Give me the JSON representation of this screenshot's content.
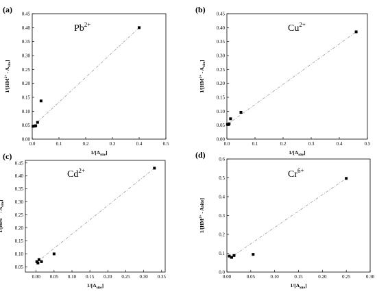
{
  "chart_data": [
    {
      "panel": "(a)",
      "ion": "Pb",
      "ion_charge": "2+",
      "type": "scatter",
      "xlabel": "1/[A",
      "xlabel_sub": "site",
      "xlabel_end": "]",
      "ylabel": "1/[HM",
      "ylabel_sup": "2+",
      "ylabel_mid": " - A",
      "ylabel_sub": "site",
      "ylabel_end": "]",
      "xlim": [
        0,
        0.5
      ],
      "ylim": [
        0,
        0.45
      ],
      "xticks": [
        "0.0",
        "0.1",
        "0.2",
        "0.3",
        "0.4",
        "0.5"
      ],
      "yticks": [
        "0.00",
        "0.05",
        "0.10",
        "0.15",
        "0.20",
        "0.25",
        "0.30",
        "0.35",
        "0.40",
        "0.45"
      ],
      "points": [
        [
          0.003,
          0.046
        ],
        [
          0.008,
          0.047
        ],
        [
          0.013,
          0.048
        ],
        [
          0.02,
          0.06
        ],
        [
          0.033,
          0.137
        ],
        [
          0.4,
          0.4
        ]
      ],
      "fit": [
        [
          0.003,
          0.046
        ],
        [
          0.4,
          0.4
        ]
      ]
    },
    {
      "panel": "(b)",
      "ion": "Cu",
      "ion_charge": "2+",
      "type": "scatter",
      "xlabel": "1/[A",
      "xlabel_sub": "site",
      "xlabel_end": "]",
      "ylabel": "1/[HM",
      "ylabel_sup": "2+",
      "ylabel_mid": " - A",
      "ylabel_sub": "site",
      "ylabel_end": "]",
      "xlim": [
        0,
        0.5
      ],
      "ylim": [
        0,
        0.45
      ],
      "xticks": [
        "0.0",
        "0.1",
        "0.2",
        "0.3",
        "0.4",
        "0.5"
      ],
      "yticks": [
        "0.00",
        "0.05",
        "0.10",
        "0.15",
        "0.20",
        "0.25",
        "0.30",
        "0.35",
        "0.40",
        "0.45"
      ],
      "points": [
        [
          0.002,
          0.053
        ],
        [
          0.005,
          0.052
        ],
        [
          0.008,
          0.055
        ],
        [
          0.013,
          0.073
        ],
        [
          0.05,
          0.096
        ],
        [
          0.46,
          0.385
        ]
      ],
      "fit": [
        [
          0.002,
          0.053
        ],
        [
          0.46,
          0.385
        ]
      ]
    },
    {
      "panel": "(c)",
      "ion": "Cd",
      "ion_charge": "2+",
      "type": "scatter",
      "xlabel": "1/[A",
      "xlabel_sub": "site",
      "xlabel_end": "]",
      "ylabel": "1/[HM",
      "ylabel_sup": "2+",
      "ylabel_mid": " - A",
      "ylabel_sub": "site",
      "ylabel_end": "]",
      "xlim": [
        -0.03,
        0.36
      ],
      "ylim": [
        0.03,
        0.46
      ],
      "xticks": [
        "0.00",
        "0.05",
        "0.10",
        "0.15",
        "0.20",
        "0.25",
        "0.30",
        "0.35"
      ],
      "yticks": [
        "0.05",
        "0.10",
        "0.15",
        "0.20",
        "0.25",
        "0.30",
        "0.35",
        "0.40",
        "0.45"
      ],
      "points": [
        [
          0.002,
          0.07
        ],
        [
          0.005,
          0.065
        ],
        [
          0.008,
          0.078
        ],
        [
          0.015,
          0.07
        ],
        [
          0.05,
          0.1
        ],
        [
          0.33,
          0.43
        ]
      ],
      "fit": [
        [
          0.002,
          0.068
        ],
        [
          0.33,
          0.43
        ]
      ]
    },
    {
      "panel": "(d)",
      "ion": "Cr",
      "ion_charge": "6+",
      "type": "scatter",
      "xlabel": "1/[A",
      "xlabel_sub": "site",
      "xlabel_end": "]",
      "ylabel": "1/[HM",
      "ylabel_sup": "2+",
      "ylabel_mid": " - Asite",
      "ylabel_sub": "",
      "ylabel_end": "]",
      "xlim": [
        0,
        0.3
      ],
      "ylim": [
        0,
        0.6
      ],
      "xticks": [
        "0.00",
        "0.05",
        "0.10",
        "0.15",
        "0.20",
        "0.25",
        "0.30"
      ],
      "yticks": [
        "0.0",
        "0.1",
        "0.2",
        "0.3",
        "0.4",
        "0.5",
        "0.6"
      ],
      "points": [
        [
          0.005,
          0.085
        ],
        [
          0.01,
          0.078
        ],
        [
          0.015,
          0.088
        ],
        [
          0.055,
          0.094
        ],
        [
          0.25,
          0.497
        ]
      ],
      "fit": [
        [
          0.005,
          0.072
        ],
        [
          0.25,
          0.497
        ]
      ]
    }
  ]
}
